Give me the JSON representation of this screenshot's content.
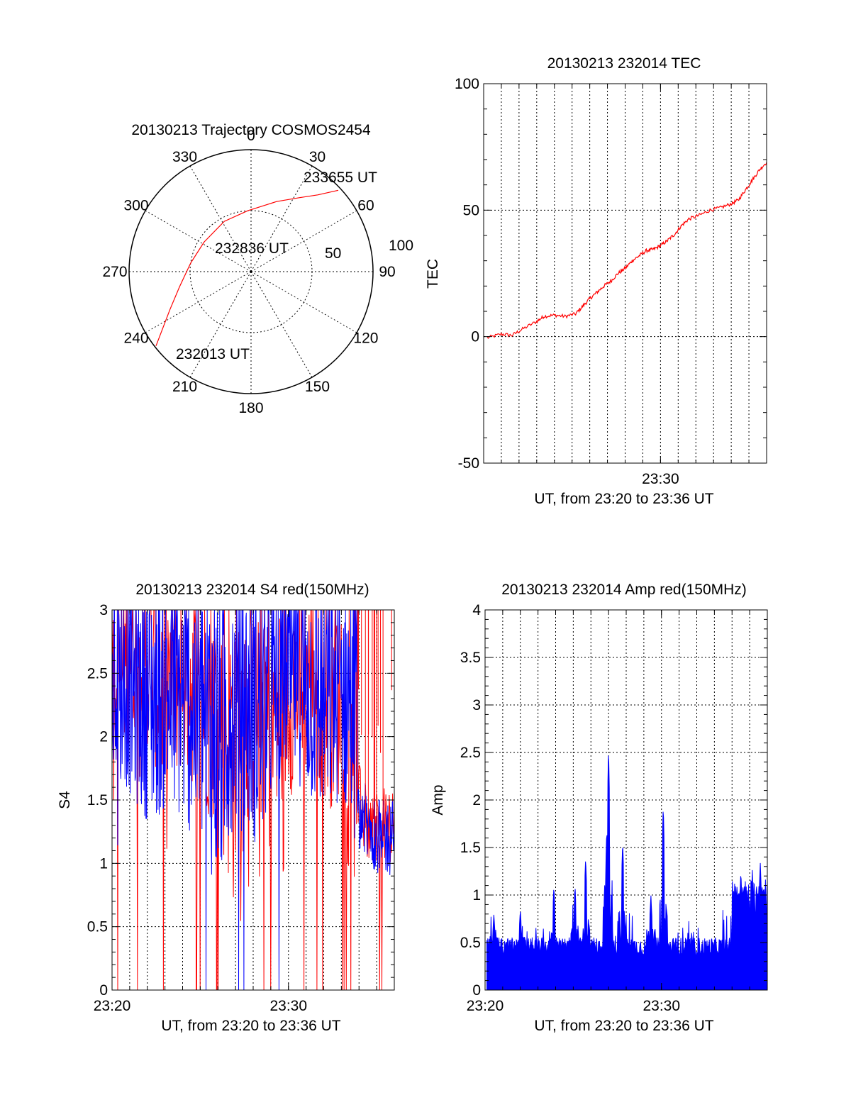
{
  "colors": {
    "red": "#ff0000",
    "blue": "#0000ff",
    "black": "#000000",
    "grid": "#000000"
  },
  "chart_data": [
    {
      "type": "polar",
      "title": "20130213 Trajectory COSMOS2454",
      "angle_labels": [
        "0",
        "30",
        "60",
        "90",
        "120",
        "150",
        "180",
        "210",
        "240",
        "270",
        "300",
        "330"
      ],
      "radial_labels": [
        "100",
        "50"
      ],
      "radial_ticks": [
        0,
        50,
        100
      ],
      "trajectory": [
        {
          "azimuth": 232,
          "elevation": 1
        },
        {
          "azimuth": 237,
          "elevation": 12
        },
        {
          "azimuth": 245,
          "elevation": 24
        },
        {
          "azimuth": 258,
          "elevation": 36
        },
        {
          "azimuth": 278,
          "elevation": 45
        },
        {
          "azimuth": 302,
          "elevation": 49
        },
        {
          "azimuth": 332,
          "elevation": 48
        },
        {
          "azimuth": 357,
          "elevation": 45
        },
        {
          "azimuth": 20,
          "elevation": 35
        },
        {
          "azimuth": 33,
          "elevation": 25
        },
        {
          "azimuth": 41,
          "elevation": 15
        },
        {
          "azimuth": 47,
          "elevation": 2
        }
      ],
      "point_labels": [
        "233655 UT",
        "232836 UT",
        "232013 UT"
      ]
    },
    {
      "type": "line",
      "title": "20130213 232014 TEC",
      "ylabel": "TEC",
      "xlabel": "UT, from 23:20 to 23:36 UT",
      "xlim": [
        0.0,
        16.0
      ],
      "ylim": [
        -50,
        100
      ],
      "yticks": [
        "100",
        "50",
        "0",
        "-50"
      ],
      "xticks": [
        {
          "v": 10,
          "label": "23:30"
        }
      ],
      "x": [
        0.2,
        1.0,
        1.6,
        2.2,
        3.0,
        3.4,
        4.0,
        4.6,
        5.2,
        5.6,
        6.0,
        6.4,
        6.8,
        7.2,
        7.6,
        8.0,
        8.4,
        8.8,
        9.2,
        9.6,
        10.0,
        10.4,
        10.8,
        11.2,
        11.6,
        12.2,
        12.8,
        13.4,
        14.0,
        14.4,
        14.8,
        15.2,
        15.6,
        16.0
      ],
      "series": [
        {
          "values": [
            -0.5,
            1.0,
            0.5,
            3.0,
            6.0,
            8.0,
            8.5,
            8.0,
            9.0,
            12.0,
            15.0,
            17.5,
            20.0,
            22.0,
            25.0,
            27.0,
            30.0,
            32.0,
            34.0,
            34.5,
            36.0,
            38.0,
            40.5,
            44.0,
            46.5,
            48.0,
            50.0,
            51.0,
            52.5,
            54.0,
            58.0,
            62.0,
            66.0,
            69.0
          ]
        }
      ]
    },
    {
      "type": "line",
      "title": "20130213 232014 S4 red(150MHz)",
      "ylabel": "S4",
      "xlabel": "UT, from 23:20 to 23:36 UT",
      "xlim": [
        0.0,
        16.0
      ],
      "ylim": [
        0,
        3
      ],
      "yticks": [
        "3",
        "2.5",
        "2",
        "1.5",
        "1",
        "0.5",
        "0"
      ],
      "xticks": [
        {
          "v": 0,
          "label": "23:20"
        },
        {
          "v": 10,
          "label": "23:30"
        }
      ],
      "series": [
        {
          "envelope_low": [
            1.3,
            1.9,
            2.1,
            1.8,
            1.5,
            1.7,
            1.6,
            1.4,
            1.2,
            0.6,
            1.2,
            1.3,
            0.9,
            1.5,
            1.6,
            1.7,
            1.4,
            1.5,
            1.3,
            1.0,
            1.0,
            1.0
          ]
        },
        {
          "envelope_low": [
            1.5,
            1.6,
            1.4,
            1.3,
            1.4,
            1.3,
            1.2,
            1.0,
            0.7,
            1.3,
            1.2,
            1.1,
            1.5,
            1.7,
            1.6,
            1.4,
            1.3,
            1.5,
            1.2,
            1.0,
            0.9,
            0.9
          ]
        }
      ]
    },
    {
      "type": "bar",
      "title": "20130213 232014 Amp red(150MHz)",
      "ylabel": "Amp",
      "xlabel": "UT, from 23:20 to 23:36 UT",
      "xlim": [
        0.0,
        16.0
      ],
      "ylim": [
        0,
        4
      ],
      "yticks": [
        "4",
        "3.5",
        "3",
        "2.5",
        "2",
        "1.5",
        "1",
        "0.5",
        "0"
      ],
      "xticks": [
        {
          "v": 0,
          "label": "23:20"
        },
        {
          "v": 10,
          "label": "23:30"
        }
      ],
      "base_level": 0.45,
      "late_level": 0.95,
      "late_start": 14.0,
      "peaks": [
        {
          "x": 7.0,
          "y": 2.57
        },
        {
          "x": 6.9,
          "y": 1.7
        },
        {
          "x": 7.8,
          "y": 1.57
        },
        {
          "x": 10.1,
          "y": 1.95
        },
        {
          "x": 9.4,
          "y": 1.0
        },
        {
          "x": 5.7,
          "y": 1.4
        },
        {
          "x": 5.1,
          "y": 1.1
        },
        {
          "x": 3.9,
          "y": 1.1
        },
        {
          "x": 0.5,
          "y": 0.8
        },
        {
          "x": 2.0,
          "y": 0.85
        },
        {
          "x": 14.5,
          "y": 1.25
        },
        {
          "x": 15.6,
          "y": 1.35
        }
      ]
    }
  ]
}
